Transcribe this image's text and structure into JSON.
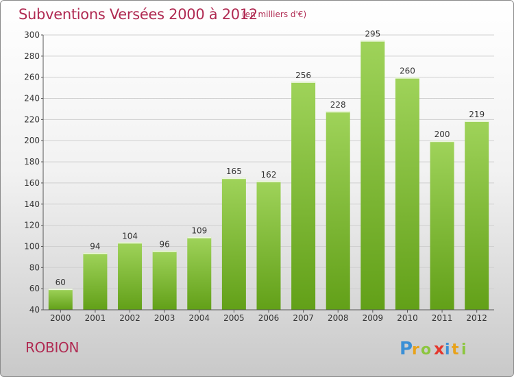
{
  "header": {
    "title": "Subventions Versées 2000 à 2012",
    "unit_note": "(en milliers d'€)"
  },
  "footer": {
    "commune": "ROBION",
    "logo_text": "Proxiti"
  },
  "colors": {
    "title": "#b02a52",
    "bar_light": "#9fd35a",
    "bar_dark": "#62a018",
    "grid": "#cfcfcf",
    "axis_text": "#333333"
  },
  "chart_data": {
    "type": "bar",
    "title": "Subventions Versées 2000 à 2012",
    "subtitle": "(en milliers d'€)",
    "categories": [
      "2000",
      "2001",
      "2002",
      "2003",
      "2004",
      "2005",
      "2006",
      "2007",
      "2008",
      "2009",
      "2010",
      "2011",
      "2012"
    ],
    "values": [
      60,
      94,
      104,
      96,
      109,
      165,
      162,
      256,
      228,
      295,
      260,
      200,
      219
    ],
    "ylim": [
      40,
      300
    ],
    "yticks": [
      40,
      60,
      80,
      100,
      120,
      140,
      160,
      180,
      200,
      220,
      240,
      260,
      280,
      300
    ],
    "grid": true,
    "data_labels": true
  }
}
